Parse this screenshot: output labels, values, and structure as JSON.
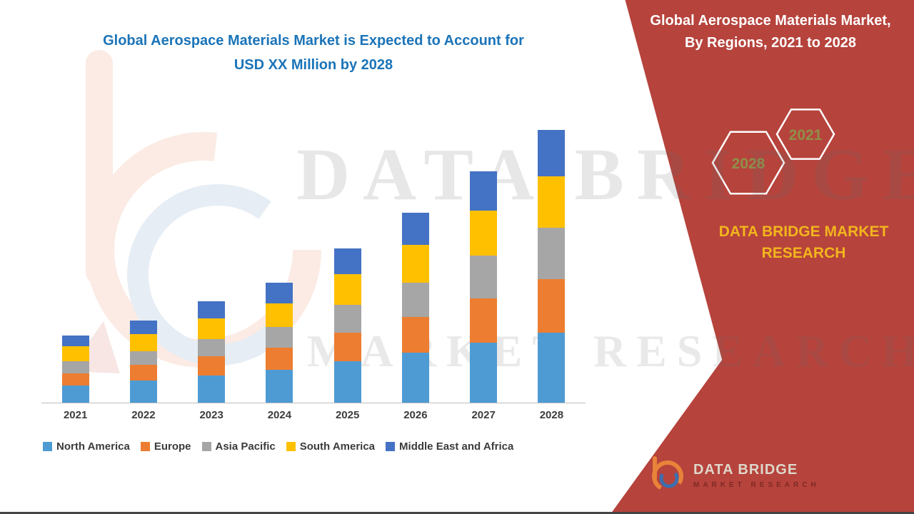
{
  "header": {
    "title_line1": "Global Aerospace Materials Market is Expected to Account for",
    "title_line2": "USD XX Million by 2028",
    "title_color": "#1b74b8"
  },
  "panel": {
    "bg_color": "#b6433c",
    "title_line1": "Global Aerospace Materials Market,",
    "title_line2": "By Regions, 2021 to 2028",
    "hexagons": [
      {
        "label": "2028"
      },
      {
        "label": "2021"
      }
    ],
    "hexagon_label_color": "#8e9148",
    "brand_line1": "DATA BRIDGE MARKET",
    "brand_line2": "RESEARCH",
    "brand_color": "#f2b51d",
    "logo": {
      "name": "DATA BRIDGE",
      "tagline": "MARKET RESEARCH"
    }
  },
  "watermark": {
    "line1": "DATA BRIDGE",
    "line2": "MARKET RESEARCH"
  },
  "chart_data": {
    "type": "bar",
    "stacked": true,
    "title": "Global Aerospace Materials Market is Expected to Account for USD XX Million by 2028",
    "categories": [
      "2021",
      "2022",
      "2023",
      "2024",
      "2025",
      "2026",
      "2027",
      "2028"
    ],
    "series": [
      {
        "name": "North America",
        "color": "#4E9BD4",
        "values": [
          10,
          13,
          16,
          19,
          24,
          29,
          35,
          41
        ]
      },
      {
        "name": "Europe",
        "color": "#ED7D31",
        "values": [
          7,
          9,
          11,
          13,
          17,
          21,
          26,
          31
        ]
      },
      {
        "name": "Asia Pacific",
        "color": "#A6A6A6",
        "values": [
          7,
          8,
          10,
          12,
          16,
          20,
          25,
          30
        ]
      },
      {
        "name": "South America",
        "color": "#FFC000",
        "values": [
          9,
          10,
          12,
          14,
          18,
          22,
          26,
          30
        ]
      },
      {
        "name": "Middle East and Africa",
        "color": "#4472C4",
        "values": [
          6,
          8,
          10,
          12,
          15,
          19,
          23,
          27
        ]
      }
    ],
    "xlabel": "",
    "ylabel": "",
    "ylim": [
      0,
      170
    ],
    "grid": false,
    "legend_position": "bottom",
    "value_note": "values estimated from bar heights; axis is unlabeled (USD XX Million)"
  }
}
